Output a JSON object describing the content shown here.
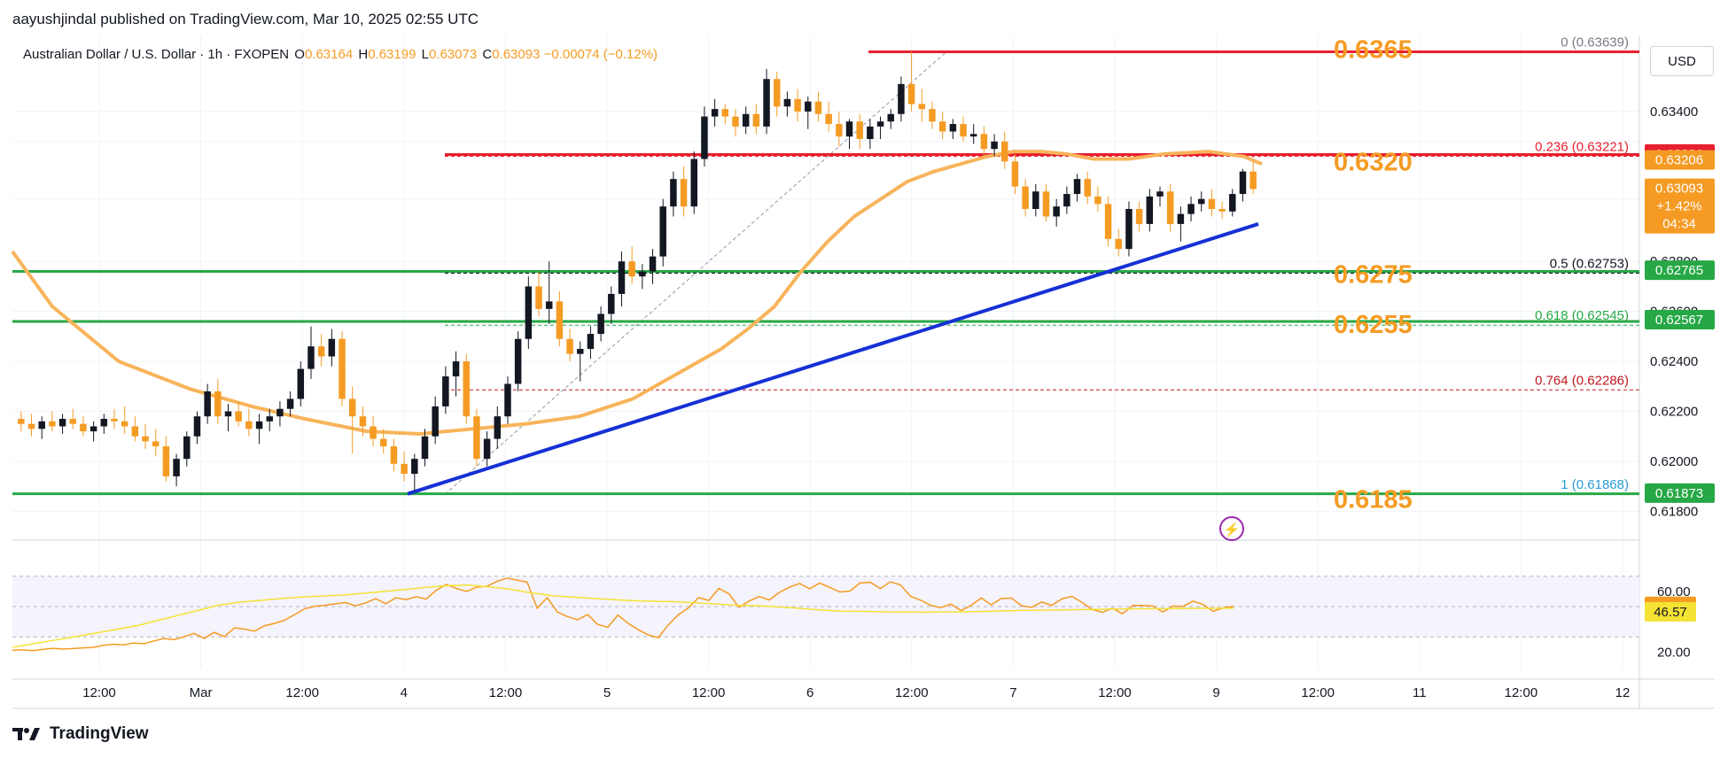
{
  "header": {
    "publisher": "aayushjindal published on TradingView.com, Mar 10, 2025 02:55 UTC"
  },
  "legend": {
    "symbol": "Australian Dollar / U.S. Dollar · 1h · FXOPEN",
    "open_label": "O",
    "open": "0.63164",
    "high_label": "H",
    "high": "0.63199",
    "low_label": "L",
    "low": "0.63073",
    "close_label": "C",
    "close": "0.63093",
    "change": "−0.00074 (−0.12%)"
  },
  "axis": {
    "currency": "USD",
    "price_ticks": [
      "0.63400",
      "0.62800",
      "0.62600",
      "0.62400",
      "0.62200",
      "0.62000",
      "0.61800"
    ],
    "rsi_ticks": [
      "60.00",
      "20.00"
    ],
    "time_ticks": [
      "12:00",
      "Mar",
      "12:00",
      "4",
      "12:00",
      "5",
      "12:00",
      "6",
      "12:00",
      "7",
      "12:00",
      "9",
      "12:00",
      "11",
      "12:00",
      "12"
    ]
  },
  "brand": {
    "name": "TradingView"
  },
  "price_badges": [
    {
      "text": "0.63230",
      "color": "#e8202f",
      "price": 0.6323
    },
    {
      "text": "0.63206",
      "color": "#f59b23",
      "price": 0.63206
    },
    {
      "text": "0.63093",
      "sub": "+1.42%",
      "sub2": "04:34",
      "color": "#f59b23",
      "price": 0.63093
    },
    {
      "text": "0.62765",
      "color": "#27a846",
      "price": 0.62765
    },
    {
      "text": "0.62567",
      "color": "#27a846",
      "price": 0.62567
    },
    {
      "text": "0.61873",
      "color": "#27a846",
      "price": 0.61873
    }
  ],
  "rsi_badges": [
    {
      "text": "50.14",
      "color": "#f59b23",
      "value": 50.14
    },
    {
      "text": "46.57",
      "color": "#f4e234",
      "value": 46.57
    }
  ],
  "annotations": [
    {
      "text": "0.6365",
      "price": 0.6365
    },
    {
      "text": "0.6320",
      "price": 0.632
    },
    {
      "text": "0.6275",
      "price": 0.6275
    },
    {
      "text": "0.6255",
      "price": 0.6255
    },
    {
      "text": "0.6185",
      "price": 0.6185
    }
  ],
  "fib_levels": [
    {
      "text": "0 (0.63639)",
      "price": 0.63639,
      "color": "#787b86"
    },
    {
      "text": "0.236 (0.63221)",
      "price": 0.63221,
      "color": "#e8202f"
    },
    {
      "text": "0.5 (0.62753)",
      "price": 0.62753,
      "color": "#131722"
    },
    {
      "text": "0.618 (0.62545)",
      "price": 0.62545,
      "color": "#27a846"
    },
    {
      "text": "0.764 (0.62286)",
      "price": 0.62286,
      "color": "#c11920"
    },
    {
      "text": "1 (0.61868)",
      "price": 0.61868,
      "color": "#2a9bd6"
    }
  ],
  "chart_data": {
    "type": "candlestick",
    "title": "Australian Dollar / U.S. Dollar · 1h · FXOPEN",
    "currency": "USD",
    "ylim": [
      0.6172,
      0.6374
    ],
    "x_time_ticks": [
      "12:00",
      "Mar",
      "12:00",
      "4",
      "12:00",
      "5",
      "12:00",
      "6",
      "12:00",
      "7",
      "12:00",
      "9",
      "12:00",
      "11",
      "12:00",
      "12"
    ],
    "candle_series": [
      [
        0.6217,
        0.622,
        0.6212,
        0.6215
      ],
      [
        0.6215,
        0.6219,
        0.621,
        0.6213
      ],
      [
        0.6213,
        0.6218,
        0.6209,
        0.6216
      ],
      [
        0.6216,
        0.622,
        0.6212,
        0.6214
      ],
      [
        0.6214,
        0.6219,
        0.6211,
        0.6217
      ],
      [
        0.6217,
        0.6221,
        0.6213,
        0.6215
      ],
      [
        0.6215,
        0.6218,
        0.621,
        0.6212
      ],
      [
        0.6212,
        0.6216,
        0.6208,
        0.6214
      ],
      [
        0.6214,
        0.6219,
        0.6211,
        0.6217
      ],
      [
        0.6217,
        0.6221,
        0.6213,
        0.6216
      ],
      [
        0.6216,
        0.6222,
        0.6211,
        0.6214
      ],
      [
        0.6214,
        0.6218,
        0.6208,
        0.621
      ],
      [
        0.621,
        0.6215,
        0.6205,
        0.6208
      ],
      [
        0.6208,
        0.6213,
        0.6202,
        0.6206
      ],
      [
        0.6206,
        0.621,
        0.6192,
        0.6194
      ],
      [
        0.6194,
        0.6203,
        0.619,
        0.6201
      ],
      [
        0.6201,
        0.6212,
        0.6198,
        0.621
      ],
      [
        0.621,
        0.622,
        0.6207,
        0.6218
      ],
      [
        0.6218,
        0.6231,
        0.6215,
        0.6228
      ],
      [
        0.6228,
        0.6233,
        0.6215,
        0.6218
      ],
      [
        0.6218,
        0.6223,
        0.6212,
        0.622
      ],
      [
        0.622,
        0.6224,
        0.6214,
        0.6216
      ],
      [
        0.6216,
        0.6221,
        0.621,
        0.6213
      ],
      [
        0.6213,
        0.6219,
        0.6207,
        0.6216
      ],
      [
        0.6216,
        0.6221,
        0.6212,
        0.6218
      ],
      [
        0.6218,
        0.6224,
        0.6214,
        0.6221
      ],
      [
        0.6221,
        0.6228,
        0.6218,
        0.6225
      ],
      [
        0.6225,
        0.624,
        0.6222,
        0.6237
      ],
      [
        0.6237,
        0.6254,
        0.6233,
        0.6246
      ],
      [
        0.6246,
        0.6251,
        0.6238,
        0.6242
      ],
      [
        0.6242,
        0.6253,
        0.6238,
        0.6249
      ],
      [
        0.6249,
        0.6252,
        0.6222,
        0.6225
      ],
      [
        0.6225,
        0.623,
        0.6203,
        0.6218
      ],
      [
        0.6218,
        0.6222,
        0.621,
        0.6214
      ],
      [
        0.6214,
        0.6218,
        0.6206,
        0.6209
      ],
      [
        0.6209,
        0.6213,
        0.6203,
        0.6206
      ],
      [
        0.6206,
        0.6209,
        0.6196,
        0.6199
      ],
      [
        0.6199,
        0.6204,
        0.6192,
        0.6195
      ],
      [
        0.6195,
        0.6203,
        0.6188,
        0.6201
      ],
      [
        0.6201,
        0.6213,
        0.6198,
        0.621
      ],
      [
        0.621,
        0.6226,
        0.6207,
        0.6222
      ],
      [
        0.6222,
        0.6238,
        0.6219,
        0.6234
      ],
      [
        0.6234,
        0.6244,
        0.6226,
        0.624
      ],
      [
        0.624,
        0.6243,
        0.6215,
        0.6218
      ],
      [
        0.6218,
        0.6221,
        0.6198,
        0.6201
      ],
      [
        0.6201,
        0.6212,
        0.6198,
        0.6209
      ],
      [
        0.6209,
        0.6222,
        0.6205,
        0.6218
      ],
      [
        0.6218,
        0.6234,
        0.6215,
        0.6231
      ],
      [
        0.6231,
        0.6252,
        0.6228,
        0.6249
      ],
      [
        0.6249,
        0.6274,
        0.6245,
        0.627
      ],
      [
        0.627,
        0.6276,
        0.6258,
        0.6261
      ],
      [
        0.6261,
        0.628,
        0.6255,
        0.6264
      ],
      [
        0.6264,
        0.6268,
        0.6246,
        0.6249
      ],
      [
        0.6249,
        0.6253,
        0.624,
        0.6243
      ],
      [
        0.6243,
        0.6248,
        0.6232,
        0.6245
      ],
      [
        0.6245,
        0.6254,
        0.6241,
        0.6251
      ],
      [
        0.6251,
        0.6262,
        0.6248,
        0.6259
      ],
      [
        0.6259,
        0.627,
        0.6255,
        0.6267
      ],
      [
        0.6267,
        0.6284,
        0.6262,
        0.628
      ],
      [
        0.628,
        0.6286,
        0.6271,
        0.6274
      ],
      [
        0.6274,
        0.6279,
        0.6269,
        0.6276
      ],
      [
        0.6276,
        0.6285,
        0.6271,
        0.6282
      ],
      [
        0.6282,
        0.6305,
        0.6278,
        0.6302
      ],
      [
        0.6302,
        0.6316,
        0.6298,
        0.6313
      ],
      [
        0.6313,
        0.6318,
        0.6298,
        0.6302
      ],
      [
        0.6302,
        0.6324,
        0.6299,
        0.6321
      ],
      [
        0.6321,
        0.6342,
        0.6318,
        0.6338
      ],
      [
        0.6338,
        0.6345,
        0.6334,
        0.6341
      ],
      [
        0.6341,
        0.6343,
        0.6335,
        0.6338
      ],
      [
        0.6338,
        0.6341,
        0.633,
        0.6334
      ],
      [
        0.6334,
        0.6342,
        0.6331,
        0.6339
      ],
      [
        0.6339,
        0.6343,
        0.6331,
        0.6334
      ],
      [
        0.6334,
        0.6357,
        0.6331,
        0.6353
      ],
      [
        0.6353,
        0.6356,
        0.6338,
        0.6342
      ],
      [
        0.6342,
        0.6348,
        0.6338,
        0.6345
      ],
      [
        0.6345,
        0.6349,
        0.6336,
        0.634
      ],
      [
        0.634,
        0.6346,
        0.6333,
        0.6344
      ],
      [
        0.6344,
        0.6348,
        0.6336,
        0.6339
      ],
      [
        0.6339,
        0.6344,
        0.6332,
        0.6335
      ],
      [
        0.6335,
        0.634,
        0.6326,
        0.633
      ],
      [
        0.633,
        0.6337,
        0.6325,
        0.6336
      ],
      [
        0.6336,
        0.6339,
        0.6325,
        0.6329
      ],
      [
        0.6329,
        0.6337,
        0.6325,
        0.6334
      ],
      [
        0.6334,
        0.6338,
        0.6329,
        0.6336
      ],
      [
        0.6336,
        0.6341,
        0.6333,
        0.6339
      ],
      [
        0.6339,
        0.6354,
        0.6336,
        0.6351
      ],
      [
        0.6351,
        0.6364,
        0.634,
        0.6343
      ],
      [
        0.6343,
        0.6349,
        0.6336,
        0.6341
      ],
      [
        0.6341,
        0.6344,
        0.6333,
        0.6336
      ],
      [
        0.6336,
        0.634,
        0.6329,
        0.6332
      ],
      [
        0.6332,
        0.6337,
        0.6329,
        0.6335
      ],
      [
        0.6335,
        0.6338,
        0.6328,
        0.633
      ],
      [
        0.633,
        0.6335,
        0.6327,
        0.6331
      ],
      [
        0.6331,
        0.6334,
        0.6322,
        0.6325
      ],
      [
        0.6325,
        0.6331,
        0.6322,
        0.6328
      ],
      [
        0.6328,
        0.6332,
        0.6317,
        0.632
      ],
      [
        0.632,
        0.6323,
        0.6307,
        0.631
      ],
      [
        0.631,
        0.6313,
        0.6298,
        0.6301
      ],
      [
        0.6301,
        0.6311,
        0.6298,
        0.6308
      ],
      [
        0.6308,
        0.6311,
        0.6296,
        0.6298
      ],
      [
        0.6298,
        0.6305,
        0.6294,
        0.6302
      ],
      [
        0.6302,
        0.631,
        0.6299,
        0.6307
      ],
      [
        0.6307,
        0.6315,
        0.6304,
        0.6313
      ],
      [
        0.6313,
        0.6316,
        0.6303,
        0.6306
      ],
      [
        0.6306,
        0.631,
        0.63,
        0.6303
      ],
      [
        0.6303,
        0.6306,
        0.6286,
        0.6289
      ],
      [
        0.6289,
        0.6293,
        0.6282,
        0.6285
      ],
      [
        0.6285,
        0.6304,
        0.6282,
        0.6301
      ],
      [
        0.6301,
        0.6304,
        0.6292,
        0.6295
      ],
      [
        0.6295,
        0.6309,
        0.6292,
        0.6306
      ],
      [
        0.6306,
        0.631,
        0.6302,
        0.6308
      ],
      [
        0.6308,
        0.6311,
        0.6292,
        0.6295
      ],
      [
        0.6295,
        0.6302,
        0.6288,
        0.6299
      ],
      [
        0.6299,
        0.6306,
        0.6296,
        0.6303
      ],
      [
        0.6303,
        0.6308,
        0.63,
        0.6305
      ],
      [
        0.6305,
        0.6309,
        0.6298,
        0.6301
      ],
      [
        0.6301,
        0.6304,
        0.6297,
        0.63
      ],
      [
        0.63,
        0.6309,
        0.6298,
        0.6307
      ],
      [
        0.6307,
        0.6317,
        0.6304,
        0.6316
      ],
      [
        0.6316,
        0.632,
        0.6307,
        0.6309
      ]
    ],
    "ma_series": [
      [
        0,
        0.6284
      ],
      [
        45,
        0.6262
      ],
      [
        120,
        0.624
      ],
      [
        200,
        0.6229
      ],
      [
        270,
        0.6222
      ],
      [
        330,
        0.6217
      ],
      [
        400,
        0.6212
      ],
      [
        460,
        0.6211
      ],
      [
        520,
        0.6213
      ],
      [
        580,
        0.6215
      ],
      [
        640,
        0.6218
      ],
      [
        700,
        0.6225
      ],
      [
        760,
        0.6237
      ],
      [
        800,
        0.6245
      ],
      [
        830,
        0.6253
      ],
      [
        860,
        0.6262
      ],
      [
        890,
        0.6276
      ],
      [
        920,
        0.6288
      ],
      [
        950,
        0.6298
      ],
      [
        980,
        0.6305
      ],
      [
        1010,
        0.6312
      ],
      [
        1040,
        0.6316
      ],
      [
        1070,
        0.6319
      ],
      [
        1100,
        0.6322
      ],
      [
        1130,
        0.6324
      ],
      [
        1160,
        0.6324
      ],
      [
        1190,
        0.6323
      ],
      [
        1220,
        0.6321
      ],
      [
        1260,
        0.6321
      ],
      [
        1300,
        0.6323
      ],
      [
        1350,
        0.6324
      ],
      [
        1390,
        0.6322
      ],
      [
        1410,
        0.6319
      ]
    ],
    "trendline": {
      "from": [
        460,
        0.6187
      ],
      "to": [
        1420,
        0.6295
      ],
      "color": "#1530d6"
    },
    "support_levels": [
      0.6276,
      0.6256,
      0.6187
    ],
    "resistance_levels": [
      0.63639,
      0.63228
    ],
    "rsi": {
      "ylim": [
        15,
        85
      ],
      "values": [
        21.2,
        21.5,
        21.0,
        21.8,
        22.5,
        22.0,
        22.4,
        22.8,
        23.1,
        24.5,
        25.2,
        24.8,
        26.0,
        25.5,
        27.3,
        29.0,
        28.2,
        30.1,
        32.3,
        29.0,
        33.0,
        30.2,
        36.0,
        35.2,
        33.8,
        37.4,
        39.0,
        41.1,
        44.9,
        48.6,
        50.2,
        50.9,
        51.8,
        52.6,
        50.5,
        52.4,
        55.3,
        51.9,
        55.8,
        54.6,
        56.5,
        55.0,
        60.7,
        64.6,
        61.9,
        60.0,
        62.8,
        63.3,
        66.6,
        68.7,
        67.5,
        66.1,
        48.9,
        55.9,
        46.4,
        43.4,
        41.3,
        44.8,
        38.2,
        36.4,
        44.4,
        39.0,
        34.8,
        31.3,
        29.5,
        38.0,
        44.7,
        49.2,
        55.9,
        54.0,
        61.9,
        58.4,
        49.5,
        53.6,
        56.7,
        54.3,
        59.4,
        62.8,
        65.2,
        61.7,
        65.5,
        62.6,
        59.6,
        60.2,
        65.6,
        66.0,
        61.9,
        66.3,
        64.3,
        56.7,
        54.2,
        50.8,
        49.3,
        51.6,
        47.4,
        50.8,
        55.7,
        51.2,
        55.3,
        55.6,
        50.5,
        49.5,
        53.0,
        50.8,
        55.1,
        56.7,
        52.7,
        48.1,
        46.2,
        48.9,
        45.3,
        50.7,
        50.7,
        50.4,
        46.4,
        50.3,
        50.1,
        53.6,
        51.3,
        46.9,
        49.2,
        50.1
      ],
      "ma_values": [
        23.2,
        25.5,
        27.8,
        30.1,
        32.5,
        34.9,
        37.3,
        40.8,
        44.2,
        47.6,
        51.0,
        52.9,
        54.1,
        55.3,
        56.3,
        57.0,
        57.6,
        58.8,
        60.0,
        61.3,
        62.7,
        63.8,
        64.2,
        63.0,
        61.5,
        59.2,
        57.3,
        56.3,
        55.5,
        54.6,
        53.9,
        53.5,
        53.2,
        52.5,
        51.7,
        50.9,
        50.5,
        49.8,
        48.9,
        47.8,
        47.0,
        46.9,
        46.6,
        46.4,
        46.3,
        46.5,
        46.6,
        46.8,
        47.2,
        47.5,
        47.7,
        47.9,
        48.1,
        48.3,
        48.5,
        48.6,
        48.7,
        48.8,
        48.9,
        49.0
      ],
      "ticks": [
        "60.00",
        "20.00"
      ],
      "latest": 50.14,
      "latest_ma": 46.57
    }
  }
}
